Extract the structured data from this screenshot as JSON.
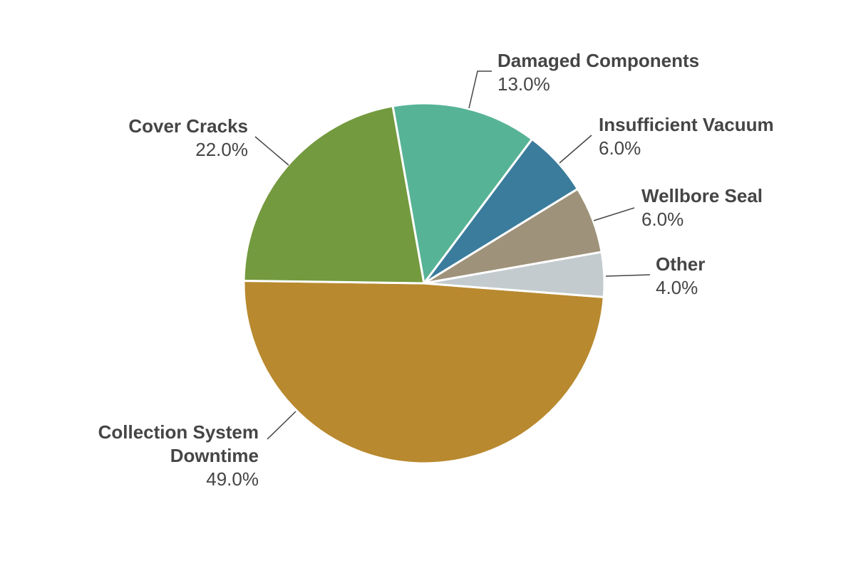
{
  "chart_data": {
    "type": "pie",
    "categories": [
      "Collection System Downtime",
      "Cover Cracks",
      "Damaged Components",
      "Insufficient Vacuum",
      "Wellbore Seal",
      "Other"
    ],
    "values": [
      49,
      22,
      13,
      6,
      6,
      4
    ],
    "value_labels": [
      "49.0%",
      "22.0%",
      "13.0%",
      "6.0%",
      "6.0%",
      "4.0%"
    ],
    "colors": [
      "#b8892f",
      "#739a3e",
      "#57b396",
      "#3b7c9c",
      "#9f927a",
      "#c3cbcf"
    ]
  }
}
